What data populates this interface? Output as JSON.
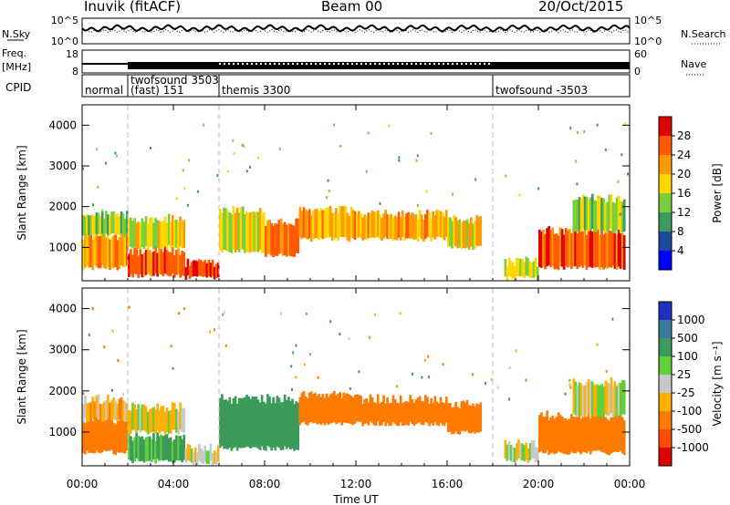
{
  "header": {
    "station": "Inuvik (fitACF)",
    "beam": "Beam 00",
    "date": "20/Oct/2015"
  },
  "status_panels": {
    "nsky_label": "N.Sky",
    "nsearch_label": "N.Search",
    "noise_ticks": [
      "10^5",
      "10^0"
    ],
    "freq_label_line1": "Freq.",
    "freq_label_line2": "[MHz]",
    "freq_ticks": [
      "18",
      "8"
    ],
    "nave_label": "Nave",
    "nave_ticks": [
      "60",
      "0"
    ],
    "cpid_label": "CPID",
    "cpid_segments": [
      {
        "name": "normal",
        "start_hour": 0.0
      },
      {
        "name": "twofsound 3503\n(fast) 151",
        "start_hour": 2.0
      },
      {
        "name": "themis 3300",
        "start_hour": 6.0
      },
      {
        "name": "twofsound -3503",
        "start_hour": 18.0
      }
    ]
  },
  "colorbars": {
    "power": {
      "label": "Power [dB]",
      "ticks": [
        "28",
        "24",
        "20",
        "16",
        "12",
        "8",
        "4"
      ],
      "colors": [
        "#e00000",
        "#ff5a00",
        "#ff9a00",
        "#ffd800",
        "#7ccd3c",
        "#3c9a5a",
        "#1c4aa0",
        "#0000ff"
      ]
    },
    "velocity": {
      "label": "Velocity [m s⁻¹]",
      "ticks": [
        "1000",
        "500",
        "100",
        "25",
        "-25",
        "-100",
        "-500",
        "-1000"
      ],
      "colors": [
        "#2030c0",
        "#3c7a9a",
        "#3c9a5a",
        "#5fcf3a",
        "#c8c8c8",
        "#ffb000",
        "#ff7a00",
        "#ff4a00",
        "#e00000"
      ]
    }
  },
  "chart_data": [
    {
      "type": "heatmap",
      "title": "",
      "xlabel": "",
      "ylabel": "Slant Range [km]",
      "x_ticks": [
        "00:00",
        "04:00",
        "08:00",
        "12:00",
        "16:00",
        "20:00",
        "00:00"
      ],
      "y_ticks": [
        "1000",
        "2000",
        "3000",
        "4000"
      ],
      "xlim_hours": [
        0,
        24
      ],
      "ylim_km": [
        180,
        4500
      ],
      "color_quantity": "Power [dB]",
      "vlines_hours": [
        2.0,
        6.0,
        18.0
      ],
      "bands": [
        {
          "t0": 0.0,
          "t1": 2.0,
          "r0": 500,
          "r1": 1300,
          "v": 22
        },
        {
          "t0": 0.0,
          "t1": 2.0,
          "r0": 1300,
          "r1": 1800,
          "v": 14
        },
        {
          "t0": 2.0,
          "t1": 4.5,
          "r0": 300,
          "r1": 900,
          "v": 26
        },
        {
          "t0": 2.0,
          "t1": 4.5,
          "r0": 1000,
          "r1": 1700,
          "v": 18
        },
        {
          "t0": 4.5,
          "t1": 6.0,
          "r0": 250,
          "r1": 600,
          "v": 28
        },
        {
          "t0": 6.0,
          "t1": 8.0,
          "r0": 900,
          "r1": 1900,
          "v": 18
        },
        {
          "t0": 8.0,
          "t1": 9.5,
          "r0": 800,
          "r1": 1600,
          "v": 24
        },
        {
          "t0": 9.5,
          "t1": 12.0,
          "r0": 1200,
          "r1": 1900,
          "v": 22
        },
        {
          "t0": 12.0,
          "t1": 16.0,
          "r0": 1200,
          "r1": 1800,
          "v": 22
        },
        {
          "t0": 16.0,
          "t1": 17.5,
          "r0": 1000,
          "r1": 1700,
          "v": 18
        },
        {
          "t0": 18.5,
          "t1": 20.0,
          "r0": 250,
          "r1": 650,
          "v": 16
        },
        {
          "t0": 20.0,
          "t1": 23.8,
          "r0": 500,
          "r1": 1400,
          "v": 26
        },
        {
          "t0": 21.5,
          "t1": 23.8,
          "r0": 1400,
          "r1": 2200,
          "v": 14
        }
      ]
    },
    {
      "type": "heatmap",
      "title": "",
      "xlabel": "Time UT",
      "ylabel": "Slant Range [km]",
      "x_ticks": [
        "00:00",
        "04:00",
        "08:00",
        "12:00",
        "16:00",
        "20:00",
        "00:00"
      ],
      "y_ticks": [
        "1000",
        "2000",
        "3000",
        "4000"
      ],
      "xlim_hours": [
        0,
        24
      ],
      "ylim_km": [
        180,
        4500
      ],
      "color_quantity": "Velocity [m s⁻¹]",
      "vlines_hours": [
        2.0,
        6.0,
        18.0
      ],
      "bands": [
        {
          "t0": 0.0,
          "t1": 2.0,
          "r0": 500,
          "r1": 1300,
          "v": -200
        },
        {
          "t0": 0.0,
          "t1": 2.0,
          "r0": 1300,
          "r1": 1800,
          "v": -50
        },
        {
          "t0": 2.0,
          "t1": 4.5,
          "r0": 300,
          "r1": 900,
          "v": 150
        },
        {
          "t0": 2.0,
          "t1": 4.5,
          "r0": 1000,
          "r1": 1600,
          "v": 0
        },
        {
          "t0": 4.5,
          "t1": 6.0,
          "r0": 250,
          "r1": 600,
          "v": 0
        },
        {
          "t0": 6.0,
          "t1": 9.5,
          "r0": 600,
          "r1": 1800,
          "v": 200
        },
        {
          "t0": 9.5,
          "t1": 12.0,
          "r0": 1200,
          "r1": 1900,
          "v": -200
        },
        {
          "t0": 12.0,
          "t1": 16.0,
          "r0": 1200,
          "r1": 1800,
          "v": -300
        },
        {
          "t0": 16.0,
          "t1": 17.5,
          "r0": 1000,
          "r1": 1700,
          "v": -250
        },
        {
          "t0": 18.5,
          "t1": 20.0,
          "r0": 300,
          "r1": 700,
          "v": 0
        },
        {
          "t0": 20.0,
          "t1": 23.8,
          "r0": 500,
          "r1": 1400,
          "v": -300
        },
        {
          "t0": 21.5,
          "t1": 23.8,
          "r0": 1400,
          "r1": 2200,
          "v": 0
        }
      ]
    }
  ]
}
